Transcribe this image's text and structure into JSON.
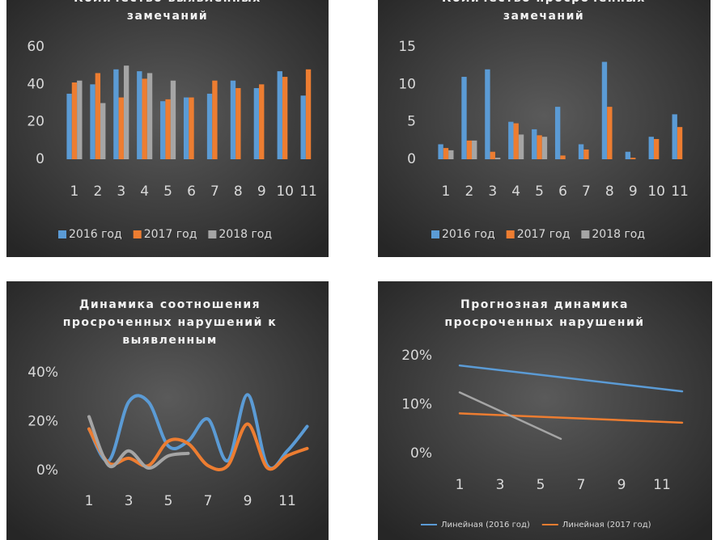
{
  "chart_data": [
    {
      "type": "bar",
      "title": [
        "Количество выявленных",
        "замечаний"
      ],
      "categories": [
        "1",
        "2",
        "3",
        "4",
        "5",
        "6",
        "7",
        "8",
        "9",
        "10",
        "11"
      ],
      "series": [
        {
          "name": "2016 год",
          "color": "#5b9bd5",
          "values": [
            35,
            40,
            48,
            47,
            31,
            33,
            35,
            42,
            38,
            47,
            34
          ]
        },
        {
          "name": "2017 год",
          "color": "#ed7d31",
          "values": [
            41,
            46,
            33,
            43,
            32,
            33,
            42,
            38,
            40,
            44,
            48
          ]
        },
        {
          "name": "2018 год",
          "color": "#a5a5a5",
          "values": [
            42,
            30,
            50,
            46,
            42,
            null,
            null,
            null,
            null,
            null,
            null
          ]
        }
      ],
      "ylim": [
        0,
        60
      ],
      "yticks": [
        0,
        20,
        40,
        60
      ],
      "grid": false,
      "legend": "bottom"
    },
    {
      "type": "bar",
      "title": [
        "Количество просроченных",
        "замечаний"
      ],
      "categories": [
        "1",
        "2",
        "3",
        "4",
        "5",
        "6",
        "7",
        "8",
        "9",
        "10",
        "11"
      ],
      "series": [
        {
          "name": "2016 год",
          "color": "#5b9bd5",
          "values": [
            2,
            11,
            12,
            5,
            4,
            7,
            2,
            13,
            1,
            3,
            6
          ]
        },
        {
          "name": "2017 год",
          "color": "#ed7d31",
          "values": [
            1.5,
            2.5,
            1,
            4.8,
            3.2,
            0.5,
            1.3,
            7,
            0.2,
            2.7,
            4.3
          ]
        },
        {
          "name": "2018 год",
          "color": "#a5a5a5",
          "values": [
            1.2,
            2.5,
            0.2,
            3.3,
            3,
            null,
            null,
            null,
            null,
            null,
            null
          ]
        }
      ],
      "ylim": [
        0,
        15
      ],
      "yticks": [
        0,
        5,
        10,
        15
      ],
      "grid": false,
      "legend": "bottom"
    },
    {
      "type": "line",
      "smooth": true,
      "title": [
        "Динамика соотношения",
        "просроченных нарушений к",
        "выявленным"
      ],
      "x": [
        1,
        2,
        3,
        4,
        5,
        6,
        7,
        8,
        9,
        10,
        11,
        12
      ],
      "series": [
        {
          "color": "#5b9bd5",
          "values": [
            17,
            4,
            28,
            28,
            10,
            12,
            21,
            4,
            31,
            2,
            8,
            18
          ]
        },
        {
          "color": "#ed7d31",
          "values": [
            17,
            3,
            5,
            2,
            12,
            11,
            2,
            2,
            19,
            1,
            6,
            9
          ]
        },
        {
          "color": "#a5a5a5",
          "values": [
            22,
            2,
            8,
            1,
            6,
            7,
            null,
            null,
            null,
            null,
            null,
            null
          ]
        }
      ],
      "xlim": [
        0,
        13
      ],
      "xticks": [
        1,
        3,
        5,
        7,
        9,
        11
      ],
      "ylim": [
        0,
        40
      ],
      "yticks": [
        {
          "value": 0,
          "label": "0%"
        },
        {
          "value": 20,
          "label": "20%"
        },
        {
          "value": 40,
          "label": "40%"
        }
      ],
      "grid": false
    },
    {
      "type": "line",
      "smooth": false,
      "title": [
        "Прогнозная динамика",
        "просроченных нарушений"
      ],
      "series": [
        {
          "name": "Линейная (2016 год)",
          "color": "#5b9bd5",
          "x": [
            1,
            12
          ],
          "values": [
            18,
            12.7
          ]
        },
        {
          "name": "Линейная (2017 год)",
          "color": "#ed7d31",
          "x": [
            1,
            12
          ],
          "values": [
            8.2,
            6.3
          ]
        },
        {
          "color": "#a5a5a5",
          "x": [
            1,
            6
          ],
          "values": [
            12.5,
            3
          ]
        }
      ],
      "xlim": [
        0,
        13
      ],
      "xticks": [
        1,
        3,
        5,
        7,
        9,
        11
      ],
      "ylim": [
        0,
        20
      ],
      "yticks": [
        {
          "value": 0,
          "label": "0%"
        },
        {
          "value": 10,
          "label": "10%"
        },
        {
          "value": 20,
          "label": "20%"
        }
      ],
      "grid": false,
      "legend": "bottom"
    }
  ]
}
